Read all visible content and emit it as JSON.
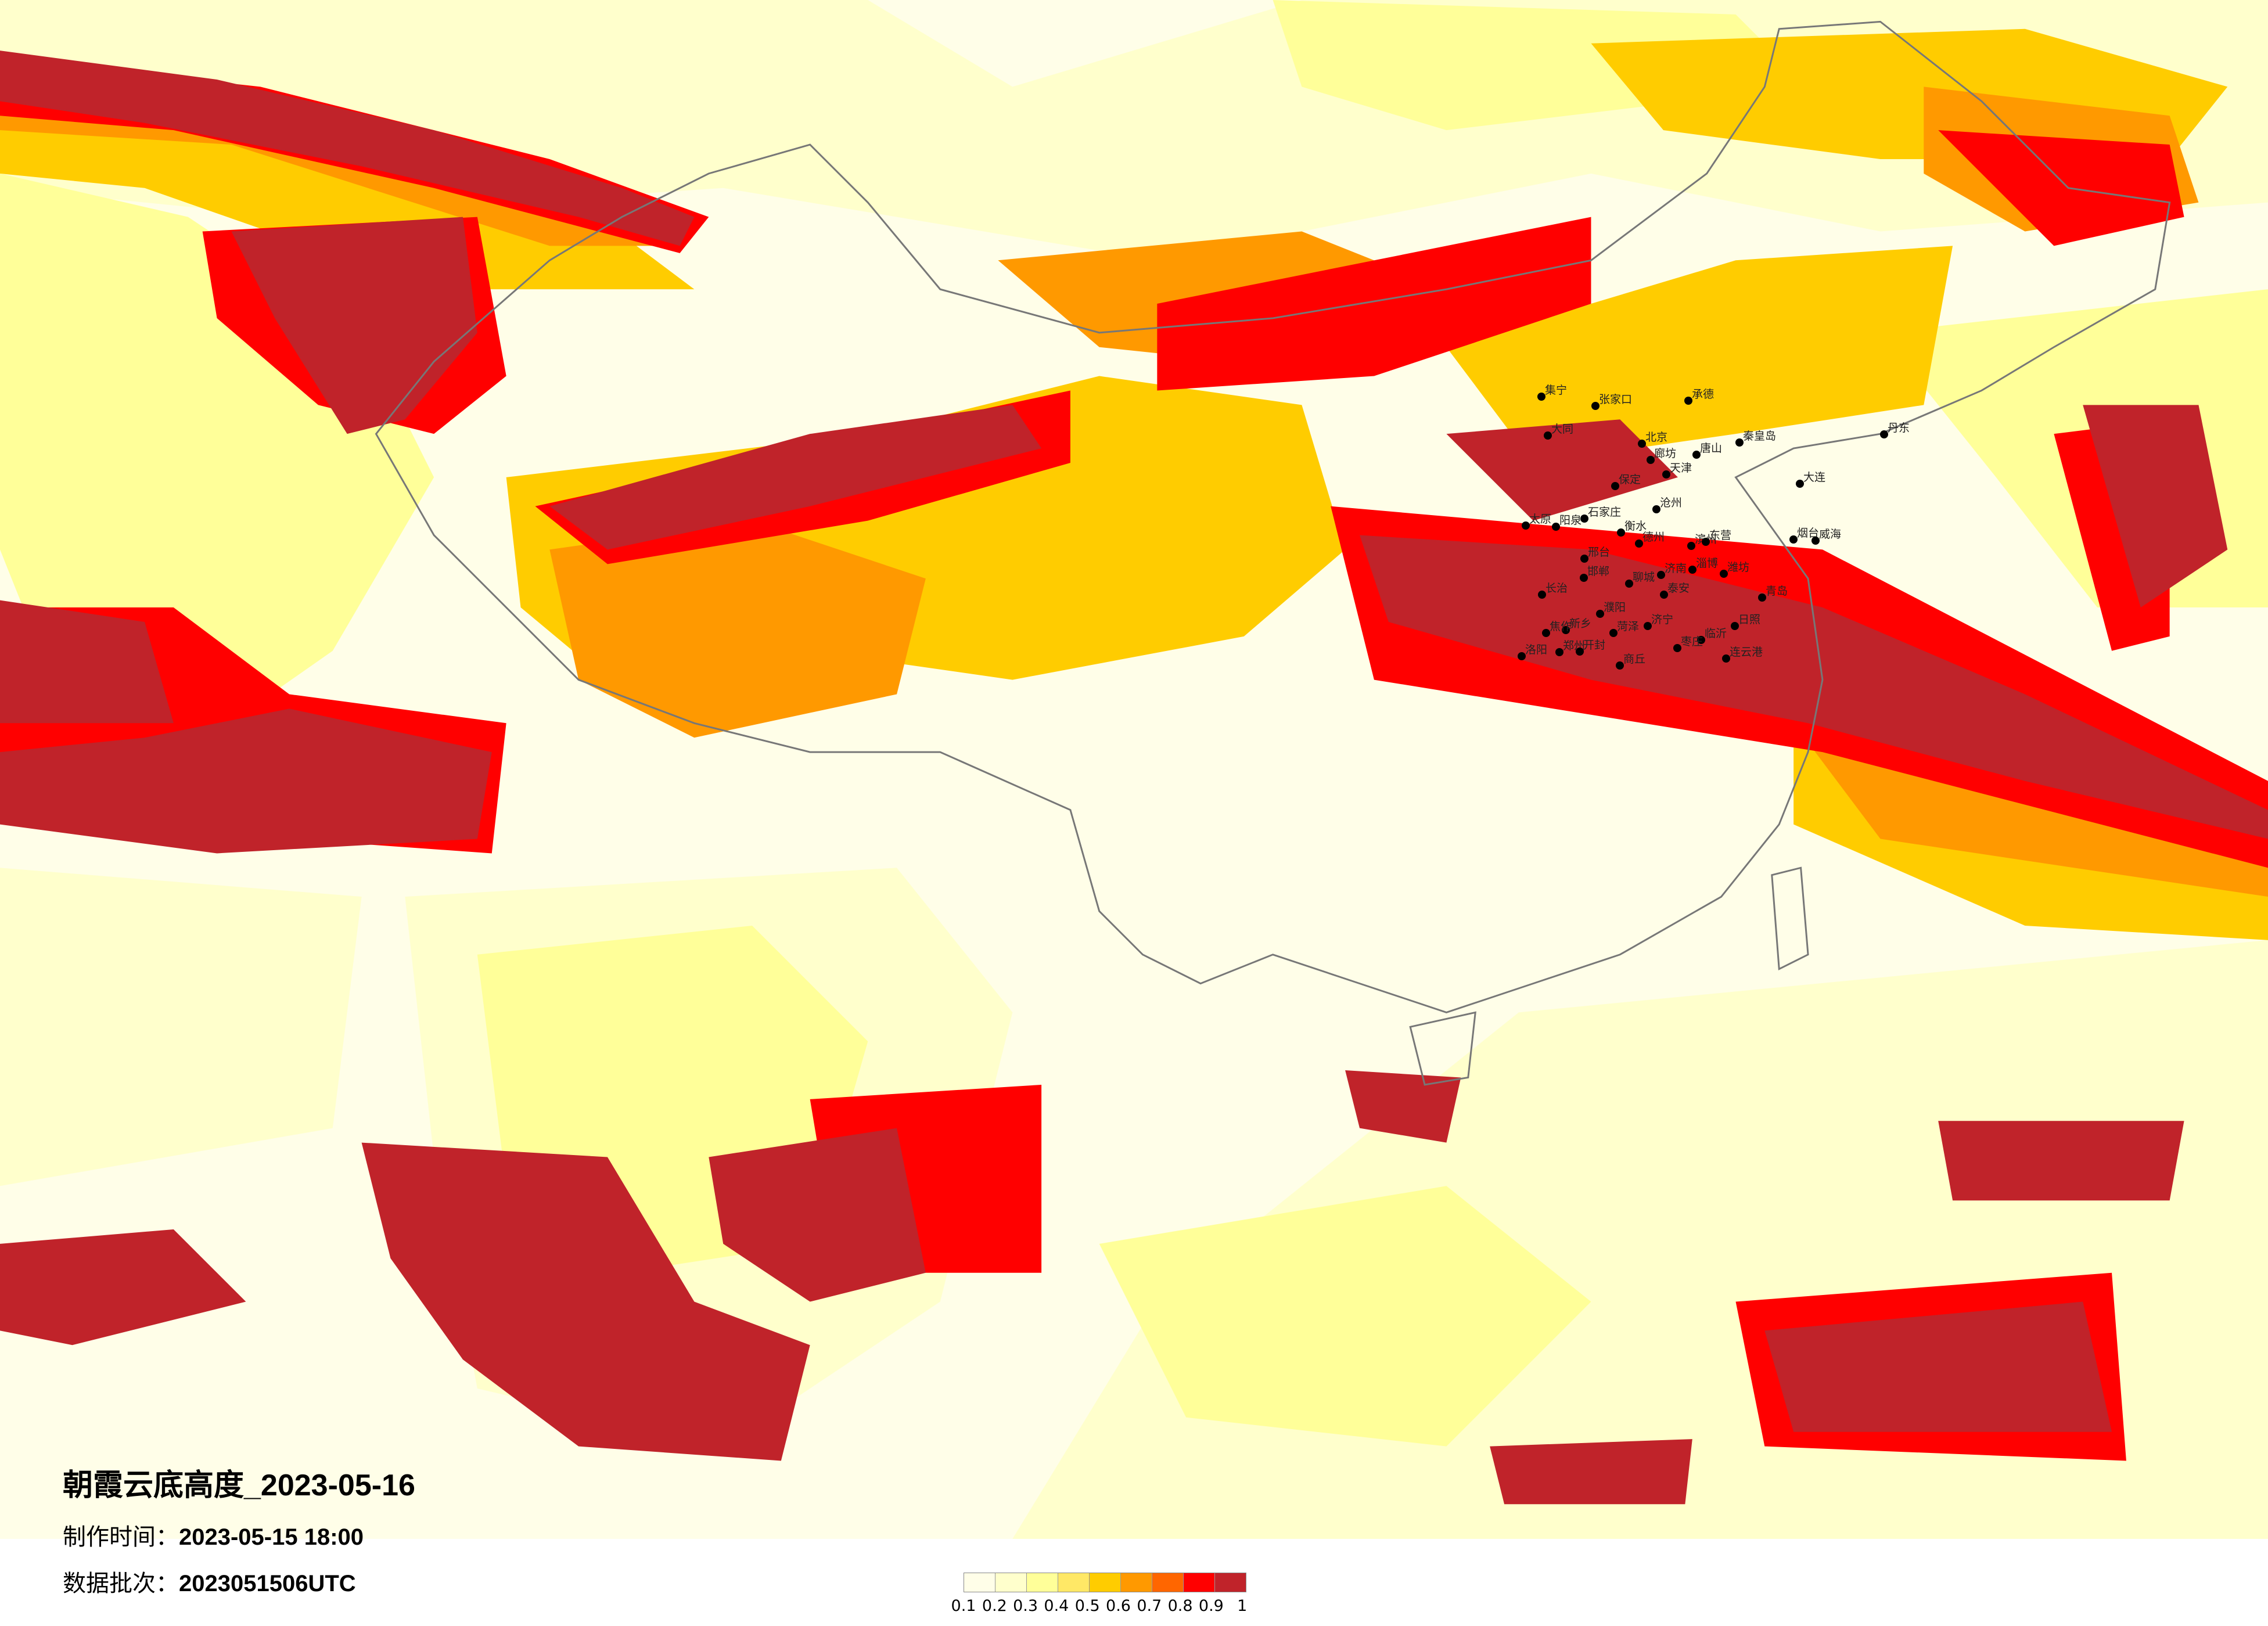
{
  "title": "朝霞云底高度_2023-05-16",
  "made_time": {
    "label": "制作时间：",
    "value": "2023-05-15 18:00"
  },
  "data_batch": {
    "label": "数据批次：",
    "value": "2023051506UTC"
  },
  "legend": {
    "labels": [
      "0.1",
      "0.2",
      "0.3",
      "0.4",
      "0.5",
      "0.6",
      "0.7",
      "0.8",
      "0.9",
      "1"
    ],
    "colors": [
      "#fffee8",
      "#ffffcc",
      "#ffff99",
      "#ffe866",
      "#ffcc00",
      "#ff9900",
      "#ff6600",
      "#ff0000",
      "#c0232a"
    ]
  },
  "cities": [
    "集宁",
    "张家口",
    "大同",
    "北京",
    "廊坊",
    "天津",
    "唐山",
    "承德",
    "秦皇岛",
    "保定",
    "沧州",
    "石家庄",
    "太原",
    "阳泉",
    "衡水",
    "德州",
    "邢台",
    "邯郸",
    "长治",
    "济南",
    "聊城",
    "泰安",
    "淄博",
    "滨州",
    "东营",
    "潍坊",
    "烟台",
    "威海",
    "青岛",
    "大连",
    "日照",
    "临沂",
    "枣庄",
    "济宁",
    "菏泽",
    "濮阳",
    "新乡",
    "焦作",
    "郑州",
    "开封",
    "洛阳",
    "商丘",
    "连云港",
    "丹东"
  ]
}
